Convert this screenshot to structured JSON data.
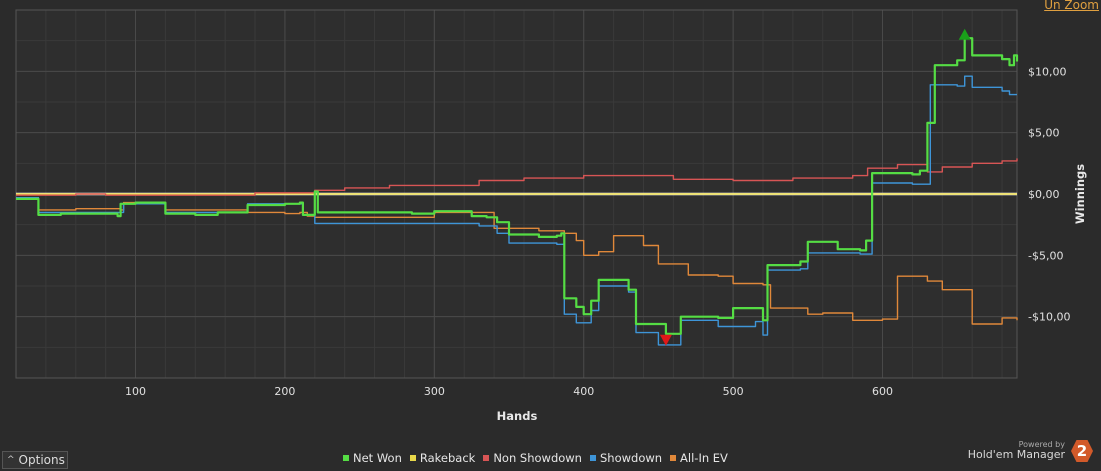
{
  "header": {
    "unzoom_label": "Un Zoom"
  },
  "footer": {
    "options_label": "Options",
    "brand_powered": "Powered by",
    "brand_name": "Hold'em Manager",
    "brand_badge": "2"
  },
  "colors": {
    "net_won": "#55dd44",
    "rakeback": "#e8d84a",
    "non_showdown": "#d85555",
    "showdown": "#3e95d8",
    "allin_ev": "#e0883a",
    "background": "#2b2b2b",
    "zero_line": "#ffffff"
  },
  "chart_data": {
    "type": "line",
    "title": "",
    "xlabel": "Hands",
    "ylabel": "Winnings",
    "xlim": [
      20,
      690
    ],
    "ylim": [
      -15,
      15
    ],
    "x_ticks": [
      100,
      200,
      300,
      400,
      500,
      600
    ],
    "y_ticks": [
      {
        "value": 10,
        "label": "$10,00"
      },
      {
        "value": 5,
        "label": "$5,00"
      },
      {
        "value": 0,
        "label": "$0,00"
      },
      {
        "value": -5,
        "label": "-$5,00"
      },
      {
        "value": -10,
        "label": "-$10,00"
      }
    ],
    "grid": true,
    "legend_position": "bottom",
    "markers": [
      {
        "type": "max",
        "x": 655,
        "y": 12.9
      },
      {
        "type": "min",
        "x": 455,
        "y": -11.8
      }
    ],
    "series": [
      {
        "name": "Net Won",
        "color_key": "net_won",
        "points": [
          [
            20,
            -0.4
          ],
          [
            32,
            -0.4
          ],
          [
            35,
            -1.7
          ],
          [
            50,
            -1.6
          ],
          [
            75,
            -1.6
          ],
          [
            88,
            -1.8
          ],
          [
            90,
            -0.8
          ],
          [
            100,
            -0.7
          ],
          [
            115,
            -0.7
          ],
          [
            120,
            -1.6
          ],
          [
            140,
            -1.7
          ],
          [
            155,
            -1.5
          ],
          [
            170,
            -1.5
          ],
          [
            175,
            -0.9
          ],
          [
            200,
            -0.8
          ],
          [
            210,
            -0.7
          ],
          [
            212,
            -1.7
          ],
          [
            218,
            -1.7
          ],
          [
            220,
            0.2
          ],
          [
            222,
            -1.5
          ],
          [
            255,
            -1.5
          ],
          [
            285,
            -1.6
          ],
          [
            300,
            -1.4
          ],
          [
            325,
            -1.8
          ],
          [
            335,
            -1.9
          ],
          [
            342,
            -2.3
          ],
          [
            350,
            -3.3
          ],
          [
            370,
            -3.5
          ],
          [
            382,
            -3.4
          ],
          [
            385,
            -3.2
          ],
          [
            387,
            -8.5
          ],
          [
            395,
            -9.2
          ],
          [
            400,
            -9.8
          ],
          [
            405,
            -8.7
          ],
          [
            410,
            -7.0
          ],
          [
            430,
            -7.8
          ],
          [
            435,
            -10.6
          ],
          [
            455,
            -11.4
          ],
          [
            465,
            -10.0
          ],
          [
            490,
            -10.1
          ],
          [
            500,
            -9.3
          ],
          [
            515,
            -9.3
          ],
          [
            520,
            -10.3
          ],
          [
            523,
            -5.8
          ],
          [
            545,
            -5.5
          ],
          [
            550,
            -3.9
          ],
          [
            565,
            -3.9
          ],
          [
            570,
            -4.5
          ],
          [
            585,
            -4.6
          ],
          [
            589,
            -3.8
          ],
          [
            593,
            1.7
          ],
          [
            620,
            1.6
          ],
          [
            625,
            1.9
          ],
          [
            630,
            5.8
          ],
          [
            635,
            10.5
          ],
          [
            650,
            10.9
          ],
          [
            655,
            12.7
          ],
          [
            660,
            11.3
          ],
          [
            680,
            11.0
          ],
          [
            685,
            10.5
          ],
          [
            688,
            11.3
          ],
          [
            690,
            10.8
          ]
        ]
      },
      {
        "name": "Rakeback",
        "color_key": "rakeback",
        "points": [
          [
            20,
            0.0
          ],
          [
            690,
            0.0
          ]
        ]
      },
      {
        "name": "Non Showdown",
        "color_key": "non_showdown",
        "points": [
          [
            20,
            -0.1
          ],
          [
            60,
            0.0
          ],
          [
            80,
            -0.1
          ],
          [
            120,
            -0.1
          ],
          [
            180,
            0.1
          ],
          [
            220,
            0.3
          ],
          [
            240,
            0.5
          ],
          [
            270,
            0.7
          ],
          [
            300,
            0.7
          ],
          [
            330,
            1.1
          ],
          [
            360,
            1.3
          ],
          [
            400,
            1.5
          ],
          [
            430,
            1.5
          ],
          [
            460,
            1.2
          ],
          [
            500,
            1.1
          ],
          [
            540,
            1.3
          ],
          [
            580,
            1.5
          ],
          [
            590,
            2.1
          ],
          [
            610,
            2.4
          ],
          [
            630,
            1.8
          ],
          [
            640,
            2.2
          ],
          [
            660,
            2.5
          ],
          [
            680,
            2.7
          ],
          [
            690,
            2.9
          ]
        ]
      },
      {
        "name": "Showdown",
        "color_key": "showdown",
        "points": [
          [
            20,
            -0.3
          ],
          [
            35,
            -1.5
          ],
          [
            90,
            -1.5
          ],
          [
            92,
            -0.8
          ],
          [
            115,
            -0.8
          ],
          [
            120,
            -1.5
          ],
          [
            170,
            -1.5
          ],
          [
            175,
            -0.8
          ],
          [
            210,
            -0.8
          ],
          [
            212,
            -1.7
          ],
          [
            218,
            -1.7
          ],
          [
            220,
            -2.4
          ],
          [
            300,
            -2.4
          ],
          [
            330,
            -2.6
          ],
          [
            342,
            -3.2
          ],
          [
            350,
            -4.0
          ],
          [
            382,
            -4.1
          ],
          [
            387,
            -9.8
          ],
          [
            395,
            -10.5
          ],
          [
            405,
            -9.5
          ],
          [
            410,
            -7.5
          ],
          [
            430,
            -8.0
          ],
          [
            435,
            -11.3
          ],
          [
            450,
            -12.3
          ],
          [
            465,
            -10.3
          ],
          [
            490,
            -10.8
          ],
          [
            515,
            -10.4
          ],
          [
            520,
            -11.5
          ],
          [
            523,
            -6.2
          ],
          [
            545,
            -6.1
          ],
          [
            550,
            -4.8
          ],
          [
            565,
            -4.8
          ],
          [
            585,
            -4.9
          ],
          [
            593,
            0.9
          ],
          [
            620,
            0.8
          ],
          [
            632,
            8.9
          ],
          [
            650,
            8.8
          ],
          [
            655,
            9.6
          ],
          [
            660,
            8.7
          ],
          [
            680,
            8.4
          ],
          [
            685,
            8.1
          ],
          [
            690,
            8.1
          ]
        ]
      },
      {
        "name": "All-In EV",
        "color_key": "allin_ev",
        "points": [
          [
            20,
            -0.3
          ],
          [
            35,
            -1.3
          ],
          [
            60,
            -1.2
          ],
          [
            90,
            -1.3
          ],
          [
            92,
            -0.7
          ],
          [
            110,
            -0.7
          ],
          [
            120,
            -1.3
          ],
          [
            170,
            -1.3
          ],
          [
            175,
            -1.5
          ],
          [
            200,
            -1.6
          ],
          [
            210,
            -1.5
          ],
          [
            215,
            -1.8
          ],
          [
            220,
            -1.9
          ],
          [
            260,
            -1.9
          ],
          [
            300,
            -1.5
          ],
          [
            340,
            -2.8
          ],
          [
            370,
            -3.0
          ],
          [
            382,
            -3.0
          ],
          [
            387,
            -3.2
          ],
          [
            395,
            -3.8
          ],
          [
            400,
            -5.0
          ],
          [
            410,
            -4.7
          ],
          [
            420,
            -3.4
          ],
          [
            440,
            -4.2
          ],
          [
            450,
            -5.7
          ],
          [
            470,
            -6.6
          ],
          [
            490,
            -6.7
          ],
          [
            500,
            -7.3
          ],
          [
            520,
            -7.4
          ],
          [
            525,
            -9.3
          ],
          [
            550,
            -9.8
          ],
          [
            560,
            -9.7
          ],
          [
            580,
            -10.3
          ],
          [
            600,
            -10.2
          ],
          [
            610,
            -6.7
          ],
          [
            630,
            -7.1
          ],
          [
            640,
            -7.8
          ],
          [
            660,
            -10.6
          ],
          [
            680,
            -10.1
          ],
          [
            690,
            -10.3
          ]
        ]
      }
    ]
  }
}
